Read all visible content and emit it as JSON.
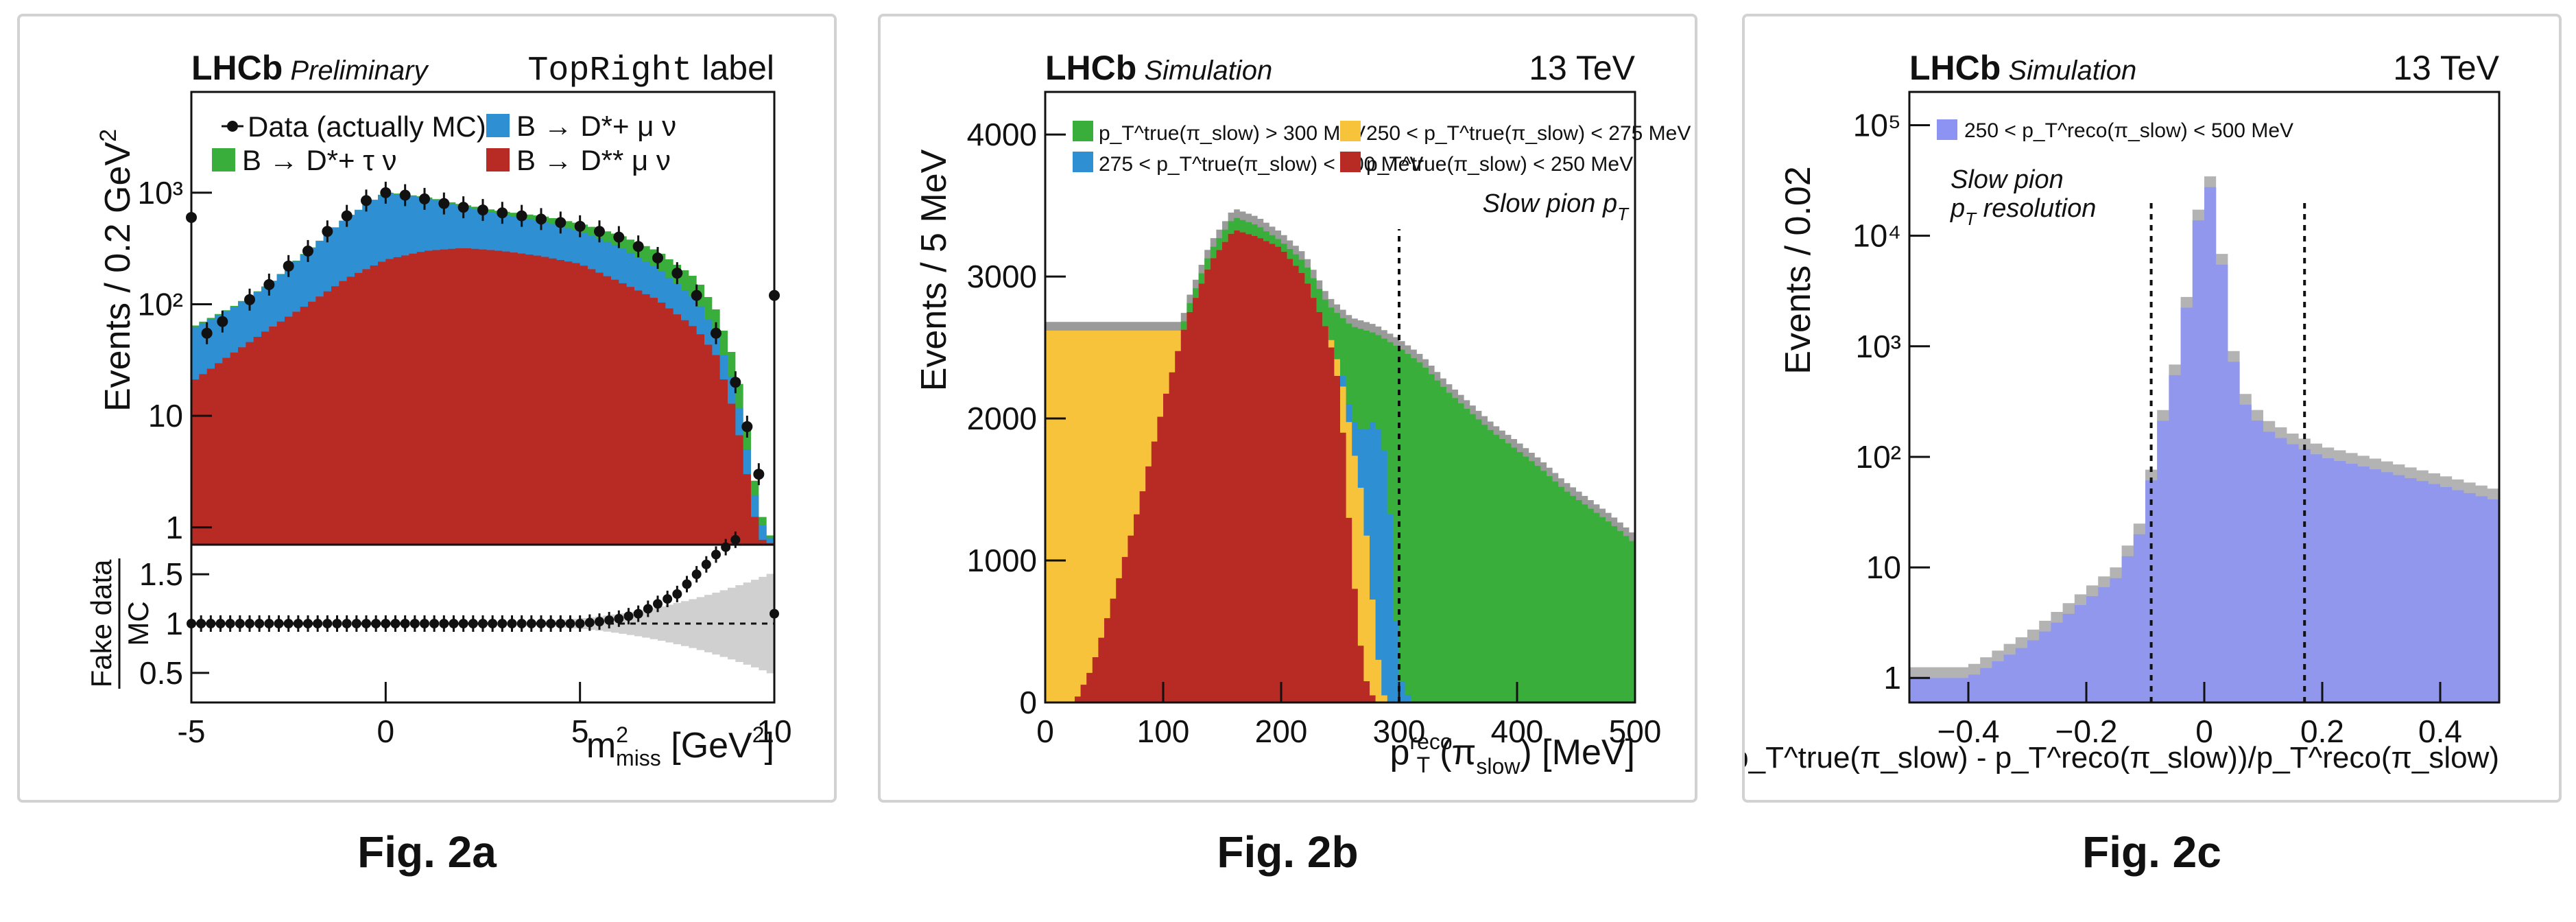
{
  "colors": {
    "red": "#b82a24",
    "blue": "#2e8fd2",
    "green": "#3aae3a",
    "yellow": "#f7c33a",
    "periwinkle": "#8c93f2",
    "gray": "#9a9a9a",
    "light_gray": "#d0d0d0",
    "panel_border": "#d2d2d2"
  },
  "panels": [
    {
      "caption": "Fig. 2a",
      "brand": "LHCb",
      "brand_sub": "Preliminary",
      "top_right_mono": "TopRight",
      "top_right_text": "label",
      "ylabel": "Events / 0.2 GeV",
      "ylabel_sup": "2",
      "xlabel": "m",
      "xlabel_sup": "2",
      "xlabel_sub": "miss",
      "xlabel_unit": "[GeV",
      "xlabel_unit_sup": "2",
      "xlabel_close": "]",
      "legend": [
        {
          "marker": "data",
          "label": "Data (actually MC)"
        },
        {
          "marker": "blue",
          "label": "B → D*+ μ ν"
        },
        {
          "marker": "green",
          "label": "B → D*+ τ ν"
        },
        {
          "marker": "red",
          "label": "B → D** μ ν"
        }
      ],
      "ratio_ylabel_top": "Fake data",
      "ratio_ylabel_bottom": "MC"
    },
    {
      "caption": "Fig. 2b",
      "brand": "LHCb",
      "brand_sub": "Simulation",
      "energy": "13 TeV",
      "ylabel": "Events / 5 MeV",
      "xlabel": "p",
      "xlabel_sup": "reco",
      "xlabel_sub": "T",
      "xlabel_arg": "(π",
      "xlabel_arg_sub": "slow",
      "xlabel_end": ") [MeV]",
      "annotation": "Slow pion p",
      "annotation_sub": "T",
      "legend": [
        {
          "color": "green",
          "label": "p_T^true(π_slow) > 300 MeV"
        },
        {
          "color": "yellow",
          "label": "250 < p_T^true(π_slow) < 275 MeV"
        },
        {
          "color": "blue",
          "label": "275 < p_T^true(π_slow) < 300 MeV"
        },
        {
          "color": "red",
          "label": "p_T^true(π_slow) < 250 MeV"
        }
      ]
    },
    {
      "caption": "Fig. 2c",
      "brand": "LHCb",
      "brand_sub": "Simulation",
      "energy": "13 TeV",
      "ylabel": "Events / 0.02",
      "xlabel": "(p_T^true(π_slow) - p_T^reco(π_slow))/p_T^reco(π_slow)",
      "annotation_line1": "Slow pion",
      "annotation_line2": "p",
      "annotation_line2_sub": "T",
      "annotation_line2_end": " resolution",
      "legend": [
        {
          "color": "periwinkle",
          "label": "250 < p_T^reco(π_slow) < 500 MeV"
        }
      ]
    }
  ],
  "chart_data": [
    {
      "type": "area",
      "title": "",
      "xlabel": "m²miss [GeV²]",
      "ylabel": "Events / 0.2 GeV²",
      "xlim": [
        -5,
        10
      ],
      "ylim": [
        0.7,
        8000
      ],
      "y_scale": "log",
      "xticks": [
        -5,
        0,
        5,
        10
      ],
      "yticks": [
        {
          "v": 1,
          "label": "1"
        },
        {
          "v": 10,
          "label": "10"
        },
        {
          "v": 100,
          "label": "10²"
        },
        {
          "v": 1000,
          "label": "10³"
        }
      ],
      "legend_position": "top",
      "series": [
        {
          "name": "B → D** μ ν",
          "color": "red",
          "points": [
            [
              -5,
              20
            ],
            [
              -4,
              35
            ],
            [
              -3,
              60
            ],
            [
              -2,
              100
            ],
            [
              -1,
              170
            ],
            [
              0,
              250
            ],
            [
              1,
              300
            ],
            [
              2,
              320
            ],
            [
              3,
              300
            ],
            [
              4,
              270
            ],
            [
              5,
              230
            ],
            [
              6,
              160
            ],
            [
              7,
              110
            ],
            [
              8,
              60
            ],
            [
              8.5,
              35
            ],
            [
              9,
              10
            ],
            [
              9.3,
              3
            ],
            [
              9.6,
              0.8
            ],
            [
              10,
              0.7
            ]
          ]
        },
        {
          "name": "B → D*+ μ ν",
          "color": "blue",
          "points": [
            [
              -5,
              60
            ],
            [
              -4,
              90
            ],
            [
              -3,
              150
            ],
            [
              -2,
              300
            ],
            [
              -1,
              600
            ],
            [
              0,
              1000
            ],
            [
              1,
              900
            ],
            [
              2,
              750
            ],
            [
              3,
              640
            ],
            [
              4,
              560
            ],
            [
              5,
              450
            ],
            [
              6,
              330
            ],
            [
              7,
              210
            ],
            [
              8,
              110
            ],
            [
              8.5,
              55
            ],
            [
              9,
              18
            ],
            [
              9.3,
              5
            ],
            [
              9.6,
              1.2
            ],
            [
              10,
              0.7
            ]
          ]
        },
        {
          "name": "B → D*+ τ ν",
          "color": "green",
          "points": [
            [
              -5,
              62
            ],
            [
              -4,
              92
            ],
            [
              -3,
              152
            ],
            [
              -2,
              302
            ],
            [
              -1,
              602
            ],
            [
              0,
              1010
            ],
            [
              1,
              920
            ],
            [
              2,
              780
            ],
            [
              3,
              680
            ],
            [
              4,
              620
            ],
            [
              5,
              530
            ],
            [
              6,
              420
            ],
            [
              7,
              300
            ],
            [
              8,
              170
            ],
            [
              8.5,
              90
            ],
            [
              9,
              30
            ],
            [
              9.3,
              8
            ],
            [
              9.6,
              1.5
            ],
            [
              10,
              0.7
            ]
          ]
        }
      ],
      "data_points": [
        [
          -5,
          600
        ],
        [
          -4.6,
          55
        ],
        [
          -4.2,
          70
        ],
        [
          -3.5,
          110
        ],
        [
          -3,
          150
        ],
        [
          -2.5,
          220
        ],
        [
          -2,
          300
        ],
        [
          -1.5,
          450
        ],
        [
          -1,
          620
        ],
        [
          -0.5,
          850
        ],
        [
          0,
          1000
        ],
        [
          0.5,
          950
        ],
        [
          1,
          880
        ],
        [
          1.5,
          800
        ],
        [
          2,
          740
        ],
        [
          2.5,
          700
        ],
        [
          3,
          660
        ],
        [
          3.5,
          620
        ],
        [
          4,
          580
        ],
        [
          4.5,
          540
        ],
        [
          5,
          500
        ],
        [
          5.5,
          450
        ],
        [
          6,
          400
        ],
        [
          6.5,
          330
        ],
        [
          7,
          260
        ],
        [
          7.5,
          190
        ],
        [
          8,
          120
        ],
        [
          8.5,
          55
        ],
        [
          9,
          20
        ],
        [
          9.3,
          8
        ],
        [
          9.6,
          3
        ],
        [
          10,
          120
        ]
      ],
      "ratio": {
        "ylim": [
          0.2,
          1.8
        ],
        "yticks": [
          0.5,
          1,
          1.5
        ],
        "reference": 1,
        "points": [
          [
            -5,
            1.0
          ],
          [
            -4,
            1.0
          ],
          [
            -3,
            1.0
          ],
          [
            -2,
            1.0
          ],
          [
            -1,
            1.0
          ],
          [
            0,
            1.0
          ],
          [
            1,
            1.0
          ],
          [
            2,
            1.0
          ],
          [
            3,
            1.0
          ],
          [
            4,
            1.0
          ],
          [
            5,
            1.0
          ],
          [
            5.5,
            1.02
          ],
          [
            6,
            1.05
          ],
          [
            6.5,
            1.1
          ],
          [
            7,
            1.2
          ],
          [
            7.5,
            1.3
          ],
          [
            8,
            1.5
          ],
          [
            8.5,
            1.7
          ],
          [
            9,
            1.85
          ],
          [
            10,
            1.1
          ]
        ]
      }
    },
    {
      "type": "area",
      "title": "",
      "xlabel": "p_T^reco(π_slow) [MeV]",
      "ylabel": "Events / 5 MeV",
      "xlim": [
        0,
        500
      ],
      "ylim": [
        0,
        4300
      ],
      "xticks": [
        0,
        100,
        200,
        300,
        400,
        500
      ],
      "yticks": [
        0,
        1000,
        2000,
        3000,
        4000
      ],
      "reference_line_x": 300,
      "legend_position": "top",
      "series": [
        {
          "name": "p_T^true(π_slow) < 250 MeV",
          "color": "red",
          "points": [
            [
              25,
              0
            ],
            [
              40,
              250
            ],
            [
              60,
              800
            ],
            [
              80,
              1400
            ],
            [
              100,
              2100
            ],
            [
              120,
              2700
            ],
            [
              140,
              3100
            ],
            [
              160,
              3330
            ],
            [
              180,
              3280
            ],
            [
              200,
              3200
            ],
            [
              220,
              3000
            ],
            [
              240,
              2600
            ],
            [
              250,
              2200
            ],
            [
              260,
              1000
            ],
            [
              270,
              200
            ],
            [
              280,
              0
            ]
          ]
        },
        {
          "name": "250 < p_T^true(π_slow) < 275 MeV",
          "color": "yellow",
          "points": [
            [
              240,
              2620
            ],
            [
              250,
              2350
            ],
            [
              260,
              1850
            ],
            [
              270,
              1400
            ],
            [
              280,
              500
            ],
            [
              285,
              100
            ],
            [
              290,
              0
            ]
          ]
        },
        {
          "name": "275 < p_T^true(π_slow) < 300 MeV",
          "color": "blue",
          "points": [
            [
              250,
              2400
            ],
            [
              260,
              2000
            ],
            [
              270,
              1900
            ],
            [
              280,
              2000
            ],
            [
              290,
              1700
            ],
            [
              300,
              200
            ],
            [
              310,
              0
            ]
          ]
        },
        {
          "name": "p_T^true(π_slow) > 300 MeV",
          "color": "green",
          "points": [
            [
              25,
              0
            ],
            [
              40,
              260
            ],
            [
              60,
              820
            ],
            [
              80,
              1430
            ],
            [
              100,
              2150
            ],
            [
              120,
              2760
            ],
            [
              140,
              3180
            ],
            [
              160,
              3420
            ],
            [
              180,
              3360
            ],
            [
              200,
              3250
            ],
            [
              220,
              3100
            ],
            [
              240,
              2800
            ],
            [
              260,
              2650
            ],
            [
              280,
              2600
            ],
            [
              300,
              2500
            ],
            [
              320,
              2380
            ],
            [
              340,
              2200
            ],
            [
              360,
              2050
            ],
            [
              380,
              1900
            ],
            [
              400,
              1780
            ],
            [
              420,
              1650
            ],
            [
              440,
              1500
            ],
            [
              460,
              1380
            ],
            [
              480,
              1260
            ],
            [
              500,
              1120
            ]
          ]
        }
      ]
    },
    {
      "type": "area",
      "title": "",
      "xlabel": "(p_T^true(π_slow) - p_T^reco(π_slow))/p_T^reco(π_slow)",
      "ylabel": "Events / 0.02",
      "xlim": [
        -0.5,
        0.5
      ],
      "ylim": [
        0.6,
        200000
      ],
      "y_scale": "log",
      "xticks": [
        -0.4,
        -0.2,
        0,
        0.2,
        0.4
      ],
      "yticks": [
        {
          "v": 1,
          "label": "1"
        },
        {
          "v": 10,
          "label": "10"
        },
        {
          "v": 100,
          "label": "10²"
        },
        {
          "v": 1000,
          "label": "10³"
        },
        {
          "v": 10000,
          "label": "10⁴"
        },
        {
          "v": 100000,
          "label": "10⁵"
        }
      ],
      "reference_lines_x": [
        -0.09,
        0.17
      ],
      "legend_position": "top-left",
      "series": [
        {
          "name": "250 < p_T^reco(π_slow) < 500 MeV",
          "color": "periwinkle",
          "points": [
            [
              -0.4,
              1
            ],
            [
              -0.3,
              2
            ],
            [
              -0.2,
              5
            ],
            [
              -0.15,
              8
            ],
            [
              -0.1,
              25
            ],
            [
              -0.08,
              150
            ],
            [
              -0.06,
              300
            ],
            [
              -0.04,
              1000
            ],
            [
              -0.02,
              5000
            ],
            [
              0,
              38000
            ],
            [
              0.02,
              20000
            ],
            [
              0.04,
              1500
            ],
            [
              0.06,
              350
            ],
            [
              0.1,
              180
            ],
            [
              0.15,
              130
            ],
            [
              0.2,
              100
            ],
            [
              0.3,
              75
            ],
            [
              0.4,
              55
            ],
            [
              0.5,
              40
            ]
          ]
        }
      ]
    }
  ]
}
